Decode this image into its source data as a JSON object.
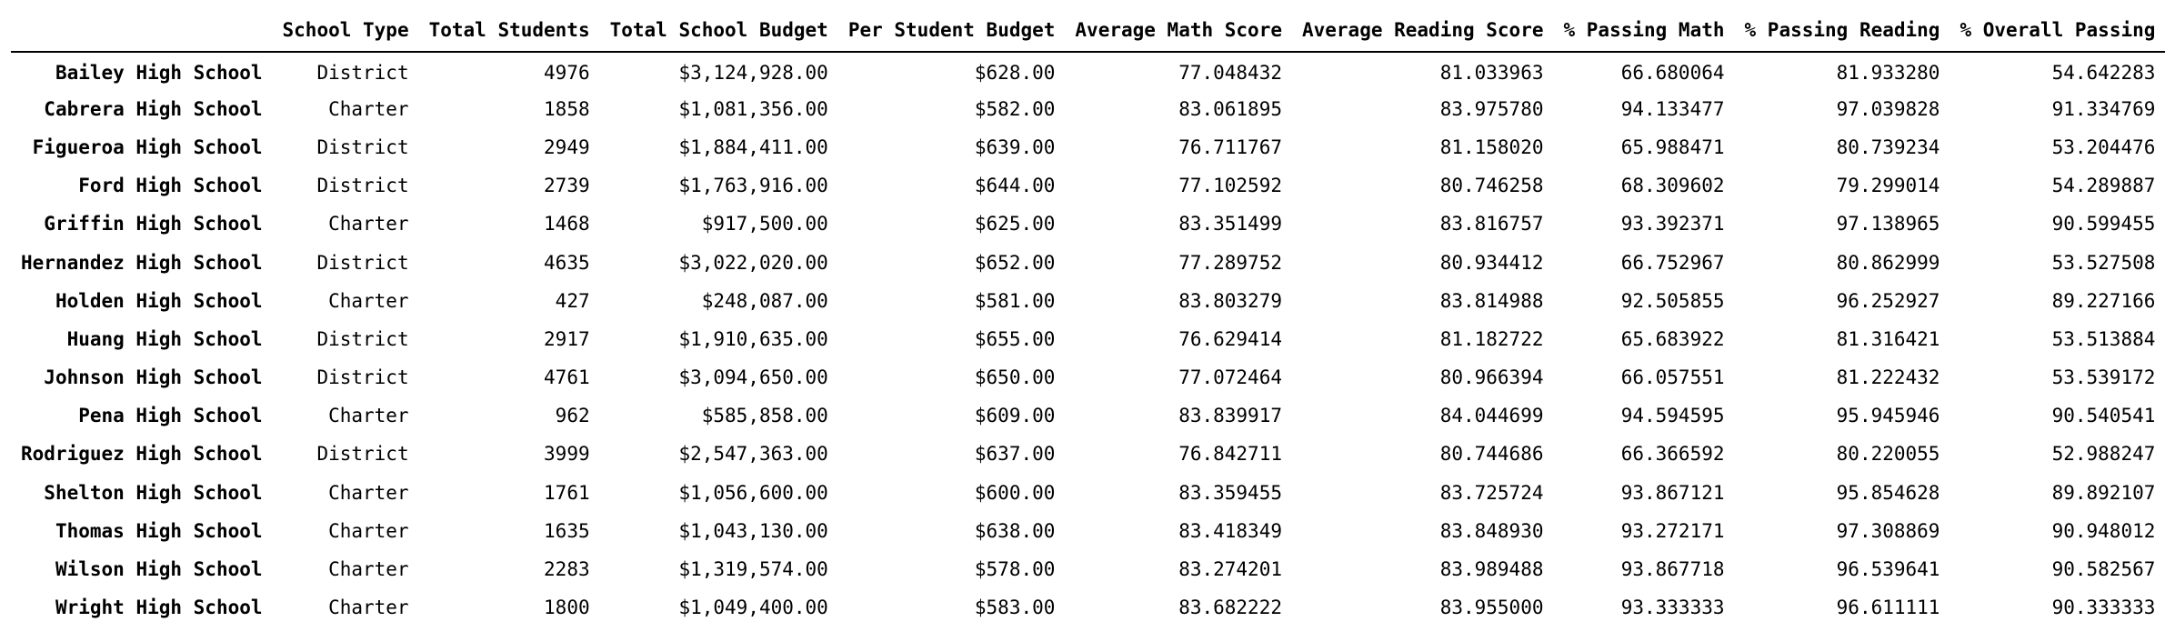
{
  "table": {
    "index_name": "",
    "columns": [
      "School Type",
      "Total Students",
      "Total School Budget",
      "Per Student Budget",
      "Average Math Score",
      "Average Reading Score",
      "% Passing Math",
      "% Passing Reading",
      "% Overall Passing"
    ],
    "rows": [
      {
        "name": "Bailey High School",
        "cells": [
          "District",
          "4976",
          "$3,124,928.00",
          "$628.00",
          "77.048432",
          "81.033963",
          "66.680064",
          "81.933280",
          "54.642283"
        ]
      },
      {
        "name": "Cabrera High School",
        "cells": [
          "Charter",
          "1858",
          "$1,081,356.00",
          "$582.00",
          "83.061895",
          "83.975780",
          "94.133477",
          "97.039828",
          "91.334769"
        ]
      },
      {
        "name": "Figueroa High School",
        "cells": [
          "District",
          "2949",
          "$1,884,411.00",
          "$639.00",
          "76.711767",
          "81.158020",
          "65.988471",
          "80.739234",
          "53.204476"
        ]
      },
      {
        "name": "Ford High School",
        "cells": [
          "District",
          "2739",
          "$1,763,916.00",
          "$644.00",
          "77.102592",
          "80.746258",
          "68.309602",
          "79.299014",
          "54.289887"
        ]
      },
      {
        "name": "Griffin High School",
        "cells": [
          "Charter",
          "1468",
          "$917,500.00",
          "$625.00",
          "83.351499",
          "83.816757",
          "93.392371",
          "97.138965",
          "90.599455"
        ]
      },
      {
        "name": "Hernandez High School",
        "cells": [
          "District",
          "4635",
          "$3,022,020.00",
          "$652.00",
          "77.289752",
          "80.934412",
          "66.752967",
          "80.862999",
          "53.527508"
        ]
      },
      {
        "name": "Holden High School",
        "cells": [
          "Charter",
          "427",
          "$248,087.00",
          "$581.00",
          "83.803279",
          "83.814988",
          "92.505855",
          "96.252927",
          "89.227166"
        ]
      },
      {
        "name": "Huang High School",
        "cells": [
          "District",
          "2917",
          "$1,910,635.00",
          "$655.00",
          "76.629414",
          "81.182722",
          "65.683922",
          "81.316421",
          "53.513884"
        ]
      },
      {
        "name": "Johnson High School",
        "cells": [
          "District",
          "4761",
          "$3,094,650.00",
          "$650.00",
          "77.072464",
          "80.966394",
          "66.057551",
          "81.222432",
          "53.539172"
        ]
      },
      {
        "name": "Pena High School",
        "cells": [
          "Charter",
          "962",
          "$585,858.00",
          "$609.00",
          "83.839917",
          "84.044699",
          "94.594595",
          "95.945946",
          "90.540541"
        ]
      },
      {
        "name": "Rodriguez High School",
        "cells": [
          "District",
          "3999",
          "$2,547,363.00",
          "$637.00",
          "76.842711",
          "80.744686",
          "66.366592",
          "80.220055",
          "52.988247"
        ]
      },
      {
        "name": "Shelton High School",
        "cells": [
          "Charter",
          "1761",
          "$1,056,600.00",
          "$600.00",
          "83.359455",
          "83.725724",
          "93.867121",
          "95.854628",
          "89.892107"
        ]
      },
      {
        "name": "Thomas High School",
        "cells": [
          "Charter",
          "1635",
          "$1,043,130.00",
          "$638.00",
          "83.418349",
          "83.848930",
          "93.272171",
          "97.308869",
          "90.948012"
        ]
      },
      {
        "name": "Wilson High School",
        "cells": [
          "Charter",
          "2283",
          "$1,319,574.00",
          "$578.00",
          "83.274201",
          "83.989488",
          "93.867718",
          "96.539641",
          "90.582567"
        ]
      },
      {
        "name": "Wright High School",
        "cells": [
          "Charter",
          "1800",
          "$1,049,400.00",
          "$583.00",
          "83.682222",
          "83.955000",
          "93.333333",
          "96.611111",
          "90.333333"
        ]
      }
    ]
  }
}
